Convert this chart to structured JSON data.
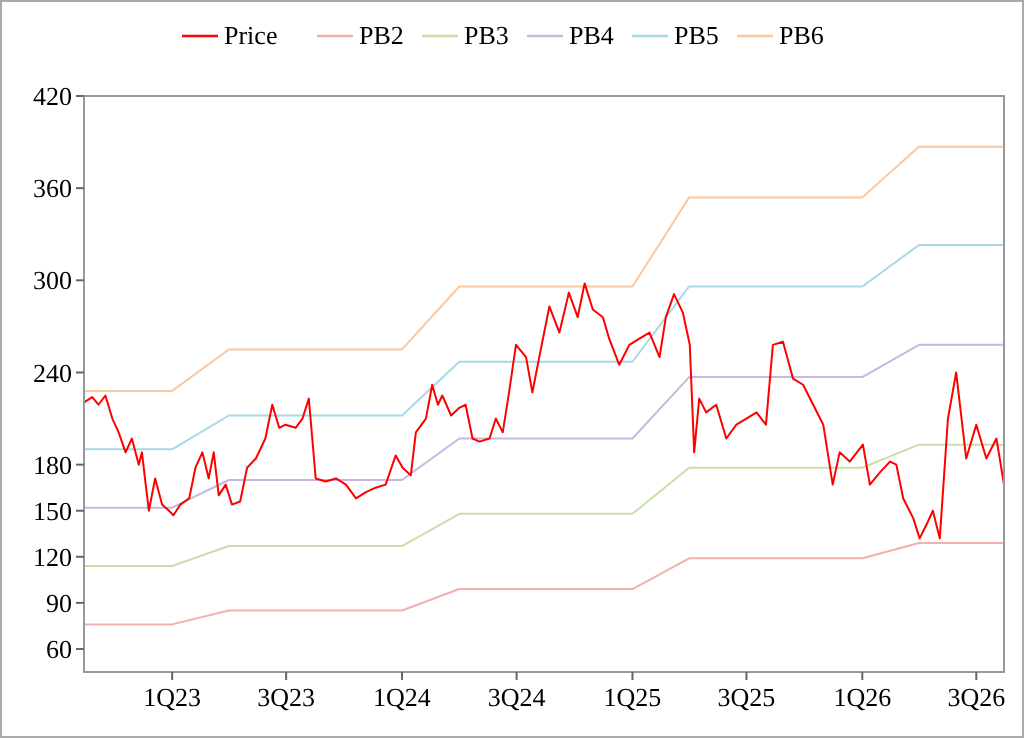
{
  "chart_data": {
    "type": "line",
    "legend": "top",
    "grid": false,
    "xlim": [
      "2022-08-14",
      "2026-08-14"
    ],
    "xticks": [
      {
        "value": "2023-01-01",
        "label": "1Q23"
      },
      {
        "value": "2023-07-01",
        "label": "3Q23"
      },
      {
        "value": "2024-01-01",
        "label": "1Q24"
      },
      {
        "value": "2024-07-01",
        "label": "3Q24"
      },
      {
        "value": "2025-01-01",
        "label": "1Q25"
      },
      {
        "value": "2025-07-01",
        "label": "3Q25"
      },
      {
        "value": "2026-01-01",
        "label": "1Q26"
      },
      {
        "value": "2026-07-01",
        "label": "3Q26"
      }
    ],
    "ylim": [
      45,
      420
    ],
    "yticks": [
      60,
      90,
      120,
      150,
      180,
      240,
      300,
      360,
      420
    ],
    "series": [
      {
        "name": "Price",
        "color": "#ff0000",
        "x": [
          "2022-08-16",
          "2022-08-27",
          "2022-09-06",
          "2022-09-17",
          "2022-09-28",
          "2022-10-08",
          "2022-10-19",
          "2022-10-29",
          "2022-11-09",
          "2022-11-14",
          "2022-11-20",
          "2022-11-25",
          "2022-12-05",
          "2022-12-16",
          "2022-12-27",
          "2023-01-03",
          "2023-01-14",
          "2023-01-28",
          "2023-02-07",
          "2023-02-18",
          "2023-02-28",
          "2023-03-08",
          "2023-03-16",
          "2023-03-27",
          "2023-04-06",
          "2023-04-19",
          "2023-04-30",
          "2023-05-14",
          "2023-05-29",
          "2023-06-09",
          "2023-06-20",
          "2023-06-30",
          "2023-07-16",
          "2023-07-27",
          "2023-08-06",
          "2023-08-17",
          "2023-09-02",
          "2023-09-18",
          "2023-10-04",
          "2023-10-20",
          "2023-11-04",
          "2023-11-20",
          "2023-12-06",
          "2023-12-22",
          "2024-01-02",
          "2024-01-15",
          "2024-01-23",
          "2024-02-08",
          "2024-02-18",
          "2024-02-27",
          "2024-03-05",
          "2024-03-19",
          "2024-04-01",
          "2024-04-11",
          "2024-04-22",
          "2024-05-03",
          "2024-05-19",
          "2024-05-29",
          "2024-06-09",
          "2024-06-19",
          "2024-06-30",
          "2024-07-16",
          "2024-07-26",
          "2024-08-06",
          "2024-08-22",
          "2024-09-07",
          "2024-09-22",
          "2024-10-06",
          "2024-10-17",
          "2024-10-30",
          "2024-11-15",
          "2024-11-25",
          "2024-12-11",
          "2024-12-27",
          "2025-01-12",
          "2025-01-28",
          "2025-02-13",
          "2025-02-23",
          "2025-03-08",
          "2025-03-22",
          "2025-04-02",
          "2025-04-09",
          "2025-04-17",
          "2025-04-28",
          "2025-05-14",
          "2025-05-30",
          "2025-06-15",
          "2025-07-01",
          "2025-07-17",
          "2025-08-01",
          "2025-08-12",
          "2025-08-28",
          "2025-09-13",
          "2025-09-29",
          "2025-10-15",
          "2025-10-31",
          "2025-11-15",
          "2025-11-26",
          "2025-12-12",
          "2026-01-02",
          "2026-01-13",
          "2026-01-29",
          "2026-02-14",
          "2026-02-24",
          "2026-03-07",
          "2026-03-23",
          "2026-04-02",
          "2026-04-13",
          "2026-04-23",
          "2026-05-04",
          "2026-05-17",
          "2026-05-30",
          "2026-06-15",
          "2026-07-01",
          "2026-07-17",
          "2026-08-02",
          "2026-08-14"
        ],
        "values": [
          221,
          224,
          219,
          225,
          210,
          201,
          188,
          197,
          180,
          188,
          167,
          150,
          171,
          154,
          150,
          147,
          154,
          158,
          178,
          188,
          171,
          188,
          160,
          167,
          154,
          156,
          178,
          184,
          197,
          219,
          204,
          206,
          204,
          210,
          223,
          171,
          169,
          171,
          167,
          158,
          162,
          165,
          167,
          186,
          178,
          173,
          201,
          210,
          232,
          219,
          225,
          212,
          217,
          219,
          197,
          195,
          197,
          210,
          201,
          227,
          258,
          250,
          227,
          250,
          283,
          266,
          292,
          276,
          298,
          281,
          276,
          262,
          245,
          258,
          262,
          266,
          250,
          276,
          291,
          279,
          258,
          188,
          223,
          214,
          219,
          197,
          206,
          210,
          214,
          206,
          258,
          260,
          236,
          232,
          219,
          206,
          167,
          188,
          182,
          193,
          167,
          175,
          182,
          180,
          158,
          145,
          132,
          141,
          150,
          132,
          210,
          240,
          184,
          206,
          184,
          197,
          167
        ]
      },
      {
        "name": "PB2",
        "color": "#f0b0b0",
        "x": [
          "2022-08-14",
          "2023-01-01",
          "2023-04-01",
          "2024-01-01",
          "2024-04-01",
          "2025-01-01",
          "2025-04-01",
          "2026-01-01",
          "2026-04-01",
          "2026-08-14"
        ],
        "values": [
          76,
          76,
          85,
          85,
          99,
          99,
          119,
          119,
          129,
          129
        ]
      },
      {
        "name": "PB3",
        "color": "#c8e0a8",
        "x": [
          "2022-08-14",
          "2023-01-01",
          "2023-04-01",
          "2024-01-01",
          "2024-04-01",
          "2025-01-01",
          "2025-04-01",
          "2026-01-01",
          "2026-04-01",
          "2026-08-14"
        ],
        "values": [
          114,
          114,
          127,
          127,
          148,
          148,
          178,
          178,
          193,
          193
        ]
      },
      {
        "name": "PB4",
        "color": "#c8b8e0",
        "x": [
          "2022-08-14",
          "2023-01-01",
          "2023-04-01",
          "2024-01-01",
          "2024-04-01",
          "2025-01-01",
          "2025-04-01",
          "2026-01-01",
          "2026-04-01",
          "2026-08-14"
        ],
        "values": [
          152,
          152,
          170,
          170,
          197,
          197,
          237,
          237,
          258,
          258
        ]
      },
      {
        "name": "PB5",
        "color": "#a8d8e8",
        "x": [
          "2022-08-14",
          "2023-01-01",
          "2023-04-01",
          "2024-01-01",
          "2024-04-01",
          "2025-01-01",
          "2025-04-01",
          "2026-01-01",
          "2026-04-01",
          "2026-08-14"
        ],
        "values": [
          190,
          190,
          212,
          212,
          247,
          247,
          296,
          296,
          323,
          323
        ]
      },
      {
        "name": "PB6",
        "color": "#f8c8a0",
        "x": [
          "2022-08-14",
          "2023-01-01",
          "2023-04-01",
          "2024-01-01",
          "2024-04-01",
          "2025-01-01",
          "2025-04-01",
          "2026-01-01",
          "2026-04-01",
          "2026-08-14"
        ],
        "values": [
          228,
          228,
          255,
          255,
          296,
          296,
          354,
          354,
          387,
          387
        ]
      }
    ]
  }
}
